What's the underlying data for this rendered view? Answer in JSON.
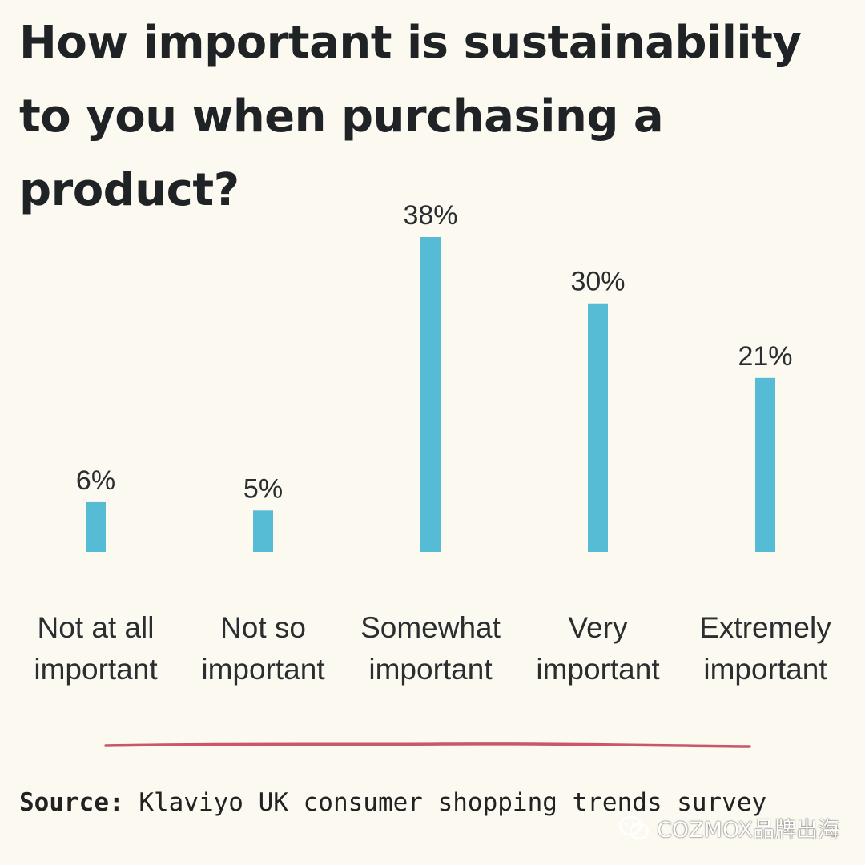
{
  "chart_data": {
    "type": "bar",
    "title": "How important is sustainability to you when purchasing a product?",
    "categories": [
      [
        "Not at all",
        "important"
      ],
      [
        "Not so",
        "important"
      ],
      [
        "Somewhat",
        "important"
      ],
      [
        "Very",
        "important"
      ],
      [
        "Extremely",
        "important"
      ]
    ],
    "values": [
      6,
      5,
      38,
      30,
      21
    ],
    "value_labels": [
      "6%",
      "5%",
      "38%",
      "30%",
      "21%"
    ],
    "ylim": [
      0,
      38
    ],
    "xlabel": "",
    "ylabel": "",
    "grid": false
  },
  "source": {
    "label": "Source:",
    "text": "Klaviyo UK consumer shopping trends survey"
  },
  "watermark": {
    "text": "COZMOX品牌出海"
  },
  "colors": {
    "bar": "#56bcd6",
    "divider": "#c9566b",
    "background": "#fcfaf0"
  }
}
